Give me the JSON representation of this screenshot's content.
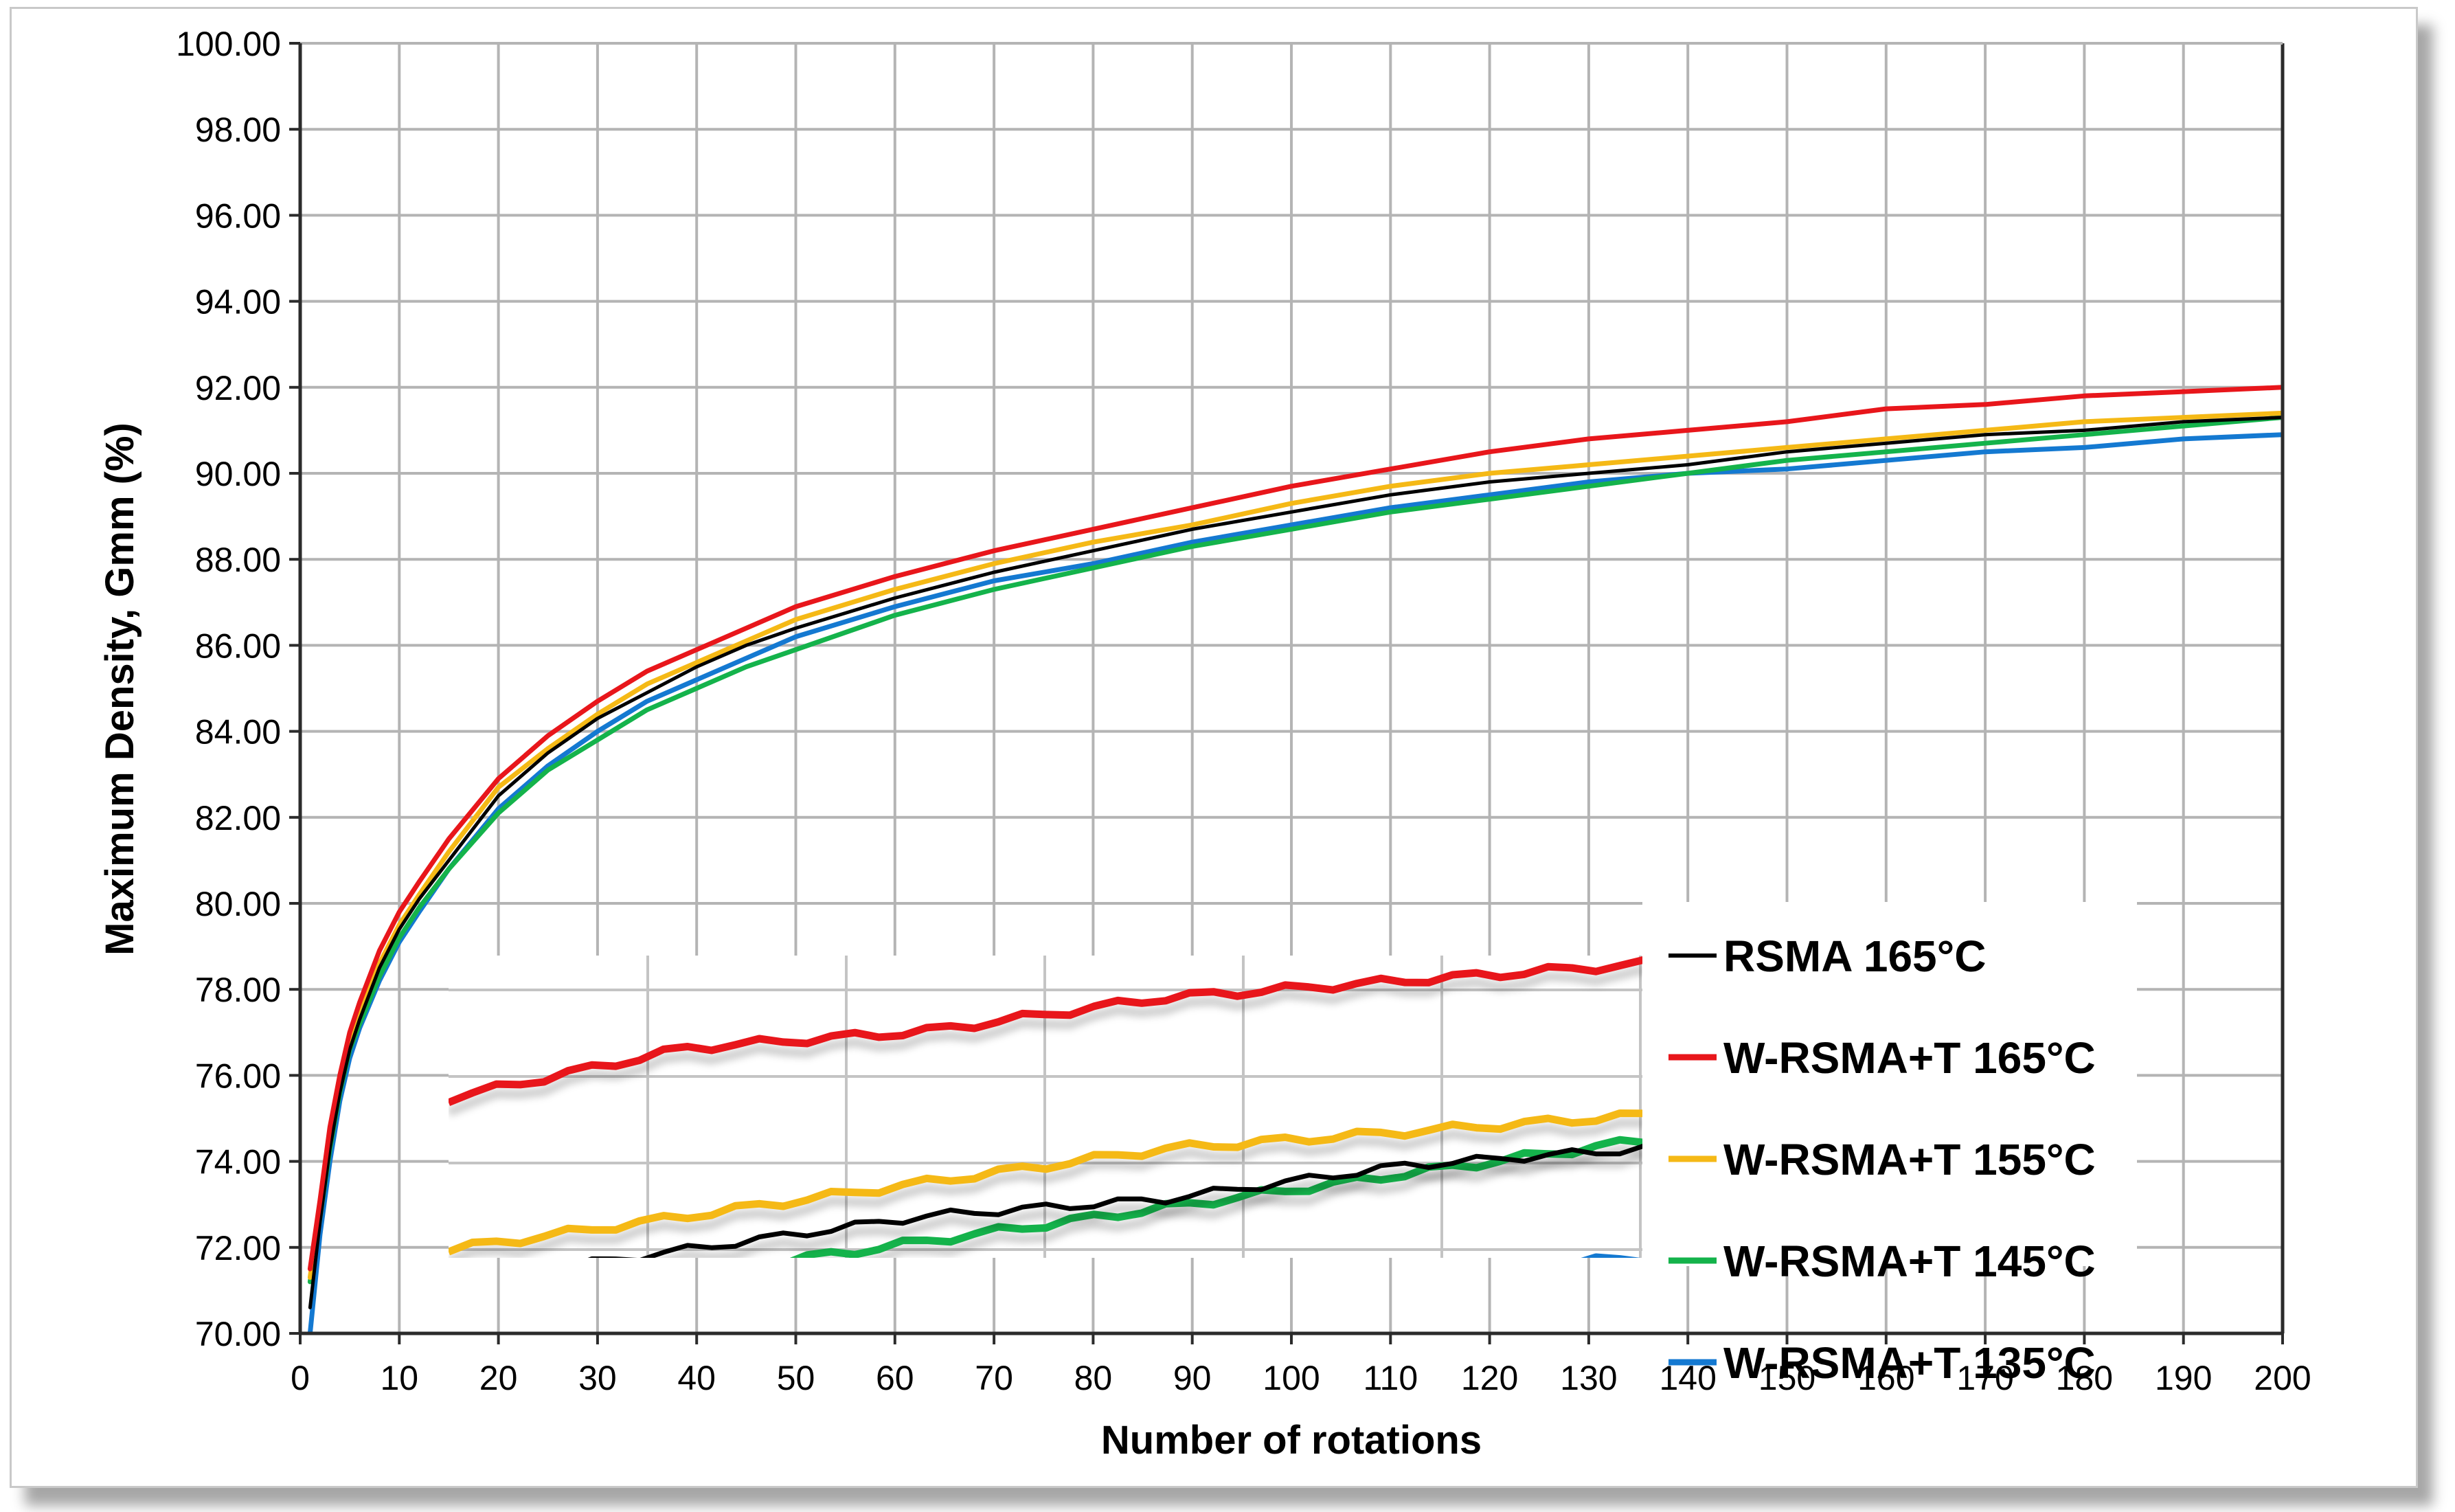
{
  "chart_data": {
    "type": "line",
    "title": "",
    "xlabel": "Number of rotations",
    "ylabel": "Maximum Density, Gmm (%)",
    "xlim": [
      0,
      200
    ],
    "ylim": [
      70,
      100
    ],
    "grid": true,
    "legend_position": "bottom-right",
    "x_ticks": [
      "0",
      "10",
      "20",
      "30",
      "40",
      "50",
      "60",
      "70",
      "80",
      "90",
      "100",
      "110",
      "120",
      "130",
      "140",
      "150",
      "160",
      "170",
      "180",
      "190",
      "200"
    ],
    "y_ticks": [
      "70.00",
      "72.00",
      "74.00",
      "76.00",
      "78.00",
      "80.00",
      "82.00",
      "84.00",
      "86.00",
      "88.00",
      "90.00",
      "92.00",
      "94.00",
      "96.00",
      "98.00",
      "100.00"
    ],
    "x": [
      1,
      2,
      3,
      4,
      5,
      6,
      8,
      10,
      12,
      15,
      20,
      25,
      30,
      35,
      40,
      45,
      50,
      60,
      70,
      80,
      90,
      100,
      110,
      120,
      130,
      140,
      150,
      160,
      170,
      180,
      190,
      200
    ],
    "series": [
      {
        "name": "RSMA 165°C",
        "color": "#000000",
        "values": [
          70.6,
          72.6,
          74.3,
          75.6,
          76.6,
          77.3,
          78.5,
          79.4,
          80.1,
          81.0,
          82.5,
          83.5,
          84.3,
          84.9,
          85.5,
          86.0,
          86.4,
          87.1,
          87.7,
          88.2,
          88.7,
          89.1,
          89.5,
          89.8,
          90.0,
          90.2,
          90.5,
          90.7,
          90.9,
          91.0,
          91.2,
          91.3
        ]
      },
      {
        "name": "W-RSMA+T 165°C",
        "color": "#e8161b",
        "values": [
          71.5,
          73.1,
          74.8,
          76.0,
          77.0,
          77.7,
          78.9,
          79.8,
          80.5,
          81.5,
          82.9,
          83.9,
          84.7,
          85.4,
          85.9,
          86.4,
          86.9,
          87.6,
          88.2,
          88.7,
          89.2,
          89.7,
          90.1,
          90.5,
          90.8,
          91.0,
          91.2,
          91.5,
          91.6,
          91.8,
          91.9,
          92.0
        ]
      },
      {
        "name": "W-RSMA+T 155°C",
        "color": "#f5b916",
        "values": [
          71.3,
          72.9,
          74.5,
          75.8,
          76.8,
          77.5,
          78.6,
          79.5,
          80.2,
          81.2,
          82.7,
          83.6,
          84.4,
          85.1,
          85.6,
          86.1,
          86.6,
          87.3,
          87.9,
          88.4,
          88.8,
          89.3,
          89.7,
          90.0,
          90.2,
          90.4,
          90.6,
          90.8,
          91.0,
          91.2,
          91.3,
          91.4
        ]
      },
      {
        "name": "W-RSMA+T 145°C",
        "color": "#14b34b",
        "values": [
          71.2,
          72.7,
          74.3,
          75.6,
          76.6,
          77.2,
          78.3,
          79.2,
          79.9,
          80.8,
          82.1,
          83.1,
          83.8,
          84.5,
          85.0,
          85.5,
          85.9,
          86.7,
          87.3,
          87.8,
          88.3,
          88.7,
          89.1,
          89.4,
          89.7,
          90.0,
          90.3,
          90.5,
          90.7,
          90.9,
          91.1,
          91.3
        ]
      },
      {
        "name": "W-RSMA+T 135°C",
        "color": "#1479d1",
        "values": [
          70.0,
          72.3,
          74.0,
          75.4,
          76.4,
          77.1,
          78.2,
          79.1,
          79.8,
          80.8,
          82.2,
          83.2,
          84.0,
          84.7,
          85.2,
          85.7,
          86.2,
          86.9,
          87.5,
          87.9,
          88.4,
          88.8,
          89.2,
          89.5,
          89.8,
          90.0,
          90.1,
          90.3,
          90.5,
          90.6,
          90.8,
          90.9
        ]
      }
    ]
  }
}
